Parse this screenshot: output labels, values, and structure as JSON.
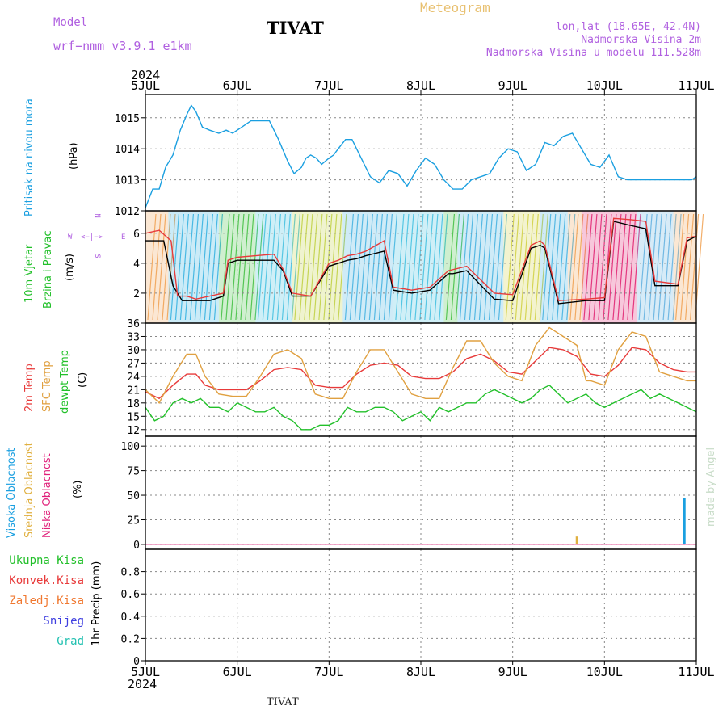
{
  "header": {
    "model_label": "Model",
    "model_name": "wrf−nmm_v3.9.1 e1km",
    "title": "TIVAT",
    "meteogram": "Meteogram",
    "lonlat": "lon,lat (18.65E, 42.4N)",
    "elev": "Nadmorska Visina 2m",
    "model_elev": "Nadmorska Visina u modelu 111.528m"
  },
  "footer": {
    "station": "TIVAT",
    "made_by": "made by Angel"
  },
  "colors": {
    "pressure": "#1a9fe0",
    "temp2m": "#e83a3a",
    "sfc": "#e0a040",
    "dew": "#22c02a",
    "high": "#1a9fe0",
    "mid": "#e0b040",
    "low": "#e0207a",
    "violet": "#b060e0"
  },
  "time_axis": {
    "year": "2024",
    "labels": [
      "5JUL",
      "6JUL",
      "7JUL",
      "8JUL",
      "9JUL",
      "10JUL",
      "11JUL"
    ]
  },
  "panels": {
    "pressure": {
      "label": "Pritisak na nivou mora",
      "unit": "(hPa)"
    },
    "wind": {
      "label1": "10m Vjetar",
      "label2": "Brzina i Pravac",
      "unit": "(m/s)",
      "compass_n": "N",
      "compass_e": "E",
      "compass_w": "W",
      "compass_s": "S"
    },
    "temp": {
      "label1": "2m Temp",
      "label2": "SFC Temp",
      "label3": "dewpt Temp",
      "unit": "(C)"
    },
    "cloud": {
      "label1": "Visoka Oblacnost",
      "label2": "Srednja Oblacnost",
      "label3": "Niska Oblacnost",
      "unit": "(%)"
    },
    "precip": {
      "unit": "1hr Precip (mm)",
      "legend": [
        "Ukupna Kisa",
        "Konvek.Kisa",
        "Zaledj.Kisa",
        "Snijeg",
        "Grad"
      ],
      "legend_colors": [
        "#22c02a",
        "#e83a3a",
        "#f07830",
        "#4040e0",
        "#20c0b0"
      ]
    }
  },
  "chart_data": [
    {
      "type": "line",
      "title": "",
      "ylabel": "Pritisak na nivou mora (hPa)",
      "xlim": [
        0,
        6
      ],
      "ylim": [
        1012,
        1015.75
      ],
      "yticks": [
        1012,
        1013,
        1014,
        1015
      ],
      "series": [
        {
          "name": "Pritisak na nivou mora",
          "color": "#1a9fe0",
          "x": [
            0,
            0.08,
            0.15,
            0.22,
            0.3,
            0.38,
            0.45,
            0.5,
            0.55,
            0.62,
            0.7,
            0.8,
            0.88,
            0.95,
            1.05,
            1.15,
            1.25,
            1.35,
            1.45,
            1.55,
            1.62,
            1.7,
            1.75,
            1.8,
            1.86,
            1.92,
            2,
            2.05,
            2.1,
            2.18,
            2.25,
            2.35,
            2.45,
            2.55,
            2.65,
            2.75,
            2.85,
            2.95,
            3.05,
            3.15,
            3.25,
            3.35,
            3.45,
            3.55,
            3.65,
            3.75,
            3.85,
            3.95,
            4.05,
            4.15,
            4.25,
            4.35,
            4.45,
            4.55,
            4.65,
            4.75,
            4.85,
            4.95,
            5.05,
            5.15,
            5.25,
            5.35,
            5.45,
            5.55,
            5.65,
            5.75,
            5.85,
            5.95,
            6
          ],
          "y": [
            1012.1,
            1012.7,
            1012.7,
            1013.4,
            1013.8,
            1014.6,
            1015.1,
            1015.4,
            1015.2,
            1014.7,
            1014.6,
            1014.5,
            1014.6,
            1014.5,
            1014.7,
            1014.9,
            1014.9,
            1014.9,
            1014.3,
            1013.6,
            1013.2,
            1013.4,
            1013.7,
            1013.8,
            1013.7,
            1013.5,
            1013.7,
            1013.8,
            1014.0,
            1014.3,
            1014.3,
            1013.7,
            1013.1,
            1012.9,
            1013.3,
            1013.2,
            1012.8,
            1013.3,
            1013.7,
            1013.5,
            1013.0,
            1012.7,
            1012.7,
            1013.0,
            1013.1,
            1013.2,
            1013.7,
            1014.0,
            1013.9,
            1013.3,
            1013.5,
            1014.2,
            1014.1,
            1014.4,
            1014.5,
            1014.0,
            1013.5,
            1013.4,
            1013.8,
            1013.1,
            1013.0,
            1013.0,
            1013.0,
            1013.0,
            1013.0,
            1013.0,
            1013.0,
            1013.0,
            1013.1
          ]
        }
      ]
    },
    {
      "type": "line",
      "title": "",
      "ylabel": "10m Vjetar Brzina i Pravac (m/s)",
      "xlim": [
        0,
        6
      ],
      "ylim": [
        0,
        7.5
      ],
      "yticks": [
        2,
        4,
        6
      ],
      "series": [
        {
          "name": "Brzina",
          "color": "#000000",
          "x": [
            0,
            0.1,
            0.2,
            0.3,
            0.4,
            0.5,
            0.7,
            0.85,
            0.9,
            1.0,
            1.2,
            1.4,
            1.5,
            1.6,
            1.8,
            2.0,
            2.1,
            2.2,
            2.3,
            2.4,
            2.6,
            2.7,
            2.9,
            3.1,
            3.3,
            3.35,
            3.5,
            3.8,
            4.0,
            4.2,
            4.3,
            4.35,
            4.5,
            4.8,
            5.0,
            5.1,
            5.3,
            5.45,
            5.55,
            5.8,
            5.9,
            6
          ],
          "y": [
            5.5,
            5.5,
            5.5,
            2.5,
            1.5,
            1.5,
            1.5,
            1.8,
            4.0,
            4.2,
            4.2,
            4.2,
            3.5,
            1.8,
            1.8,
            3.8,
            4.0,
            4.2,
            4.3,
            4.5,
            4.8,
            2.2,
            2.0,
            2.2,
            3.3,
            3.3,
            3.5,
            1.6,
            1.5,
            5.0,
            5.2,
            5.0,
            1.3,
            1.5,
            1.5,
            6.8,
            6.5,
            6.3,
            2.5,
            2.5,
            5.5,
            5.8
          ]
        },
        {
          "name": "Udari",
          "color": "#e83a3a",
          "x": [
            0,
            0.15,
            0.28,
            0.35,
            0.45,
            0.55,
            0.7,
            0.85,
            0.9,
            1.0,
            1.2,
            1.4,
            1.5,
            1.6,
            1.8,
            2.0,
            2.1,
            2.2,
            2.3,
            2.4,
            2.6,
            2.7,
            2.9,
            3.1,
            3.3,
            3.5,
            3.8,
            4.0,
            4.2,
            4.3,
            4.35,
            4.5,
            4.8,
            5.0,
            5.1,
            5.3,
            5.45,
            5.55,
            5.8,
            5.9,
            6
          ],
          "y": [
            6.0,
            6.2,
            5.5,
            1.8,
            1.8,
            1.6,
            1.8,
            2.0,
            4.2,
            4.4,
            4.5,
            4.6,
            3.6,
            2.0,
            1.8,
            4.0,
            4.2,
            4.5,
            4.6,
            4.8,
            5.5,
            2.4,
            2.2,
            2.4,
            3.5,
            3.8,
            2.0,
            1.9,
            5.2,
            5.5,
            5.2,
            1.5,
            1.6,
            1.7,
            7.0,
            6.9,
            6.8,
            2.8,
            2.6,
            5.7,
            5.8
          ]
        }
      ]
    },
    {
      "type": "line",
      "title": "",
      "ylabel": "Temp (C)",
      "xlim": [
        0,
        6
      ],
      "ylim": [
        10.5,
        36
      ],
      "yticks": [
        12,
        15,
        18,
        21,
        24,
        27,
        30,
        33,
        36
      ],
      "series": [
        {
          "name": "2m Temp",
          "color": "#e83a3a",
          "x": [
            0,
            0.15,
            0.3,
            0.45,
            0.55,
            0.65,
            0.8,
            0.95,
            1.1,
            1.25,
            1.4,
            1.55,
            1.7,
            1.85,
            2.0,
            2.15,
            2.3,
            2.45,
            2.6,
            2.75,
            2.9,
            3.05,
            3.2,
            3.35,
            3.5,
            3.65,
            3.8,
            3.95,
            4.1,
            4.25,
            4.4,
            4.55,
            4.7,
            4.85,
            5.0,
            5.15,
            5.3,
            5.45,
            5.6,
            5.75,
            5.9,
            6
          ],
          "y": [
            20.5,
            19,
            22,
            24.5,
            24.5,
            22,
            21,
            21,
            21,
            23,
            25.5,
            26,
            25.5,
            22,
            21.5,
            21.5,
            24.5,
            26.5,
            27,
            26.5,
            24,
            23.5,
            23.5,
            25,
            28,
            29,
            27.5,
            25,
            24.5,
            27.5,
            30.5,
            30,
            28.5,
            24.5,
            24,
            26.5,
            30.5,
            30,
            27,
            25.5,
            25,
            25
          ]
        },
        {
          "name": "SFC Temp",
          "color": "#e0a040",
          "x": [
            0,
            0.15,
            0.3,
            0.45,
            0.55,
            0.65,
            0.8,
            0.95,
            1.1,
            1.25,
            1.4,
            1.55,
            1.7,
            1.85,
            2.0,
            2.15,
            2.3,
            2.45,
            2.6,
            2.75,
            2.9,
            3.05,
            3.2,
            3.35,
            3.5,
            3.65,
            3.8,
            3.95,
            4.1,
            4.25,
            4.4,
            4.55,
            4.7,
            4.8,
            4.85,
            5.0,
            5.15,
            5.3,
            5.45,
            5.6,
            5.75,
            5.9,
            6
          ],
          "y": [
            21,
            18,
            24,
            29,
            29,
            24,
            20,
            19.5,
            19.5,
            24,
            29,
            30,
            28,
            20,
            19,
            19,
            25,
            30,
            30,
            25,
            20,
            19,
            19,
            26,
            32,
            32,
            27,
            24,
            23,
            31,
            35,
            33,
            31,
            23,
            23,
            22,
            30,
            34,
            33,
            25,
            24,
            23,
            23
          ]
        },
        {
          "name": "dewpt Temp",
          "color": "#22c02a",
          "x": [
            0,
            0.1,
            0.2,
            0.3,
            0.4,
            0.5,
            0.6,
            0.7,
            0.8,
            0.9,
            1.0,
            1.1,
            1.2,
            1.3,
            1.4,
            1.5,
            1.6,
            1.7,
            1.8,
            1.9,
            2.0,
            2.1,
            2.2,
            2.3,
            2.4,
            2.5,
            2.6,
            2.7,
            2.8,
            2.9,
            3.0,
            3.1,
            3.2,
            3.3,
            3.4,
            3.5,
            3.6,
            3.7,
            3.8,
            3.9,
            4.0,
            4.1,
            4.2,
            4.3,
            4.4,
            4.5,
            4.6,
            4.7,
            4.8,
            4.9,
            5.0,
            5.1,
            5.2,
            5.3,
            5.4,
            5.5,
            5.6,
            5.7,
            5.8,
            5.9,
            6
          ],
          "y": [
            17,
            14,
            15,
            18,
            19,
            18,
            19,
            17,
            17,
            16,
            18,
            17,
            16,
            16,
            17,
            15,
            14,
            12,
            12,
            13,
            13,
            14,
            17,
            16,
            16,
            17,
            17,
            16,
            14,
            15,
            16,
            14,
            17,
            16,
            17,
            18,
            18,
            20,
            21,
            20,
            19,
            18,
            19,
            21,
            22,
            20,
            18,
            19,
            20,
            18,
            17,
            18,
            19,
            20,
            21,
            19,
            20,
            19,
            18,
            17,
            16
          ]
        }
      ]
    },
    {
      "type": "bar",
      "title": "",
      "ylabel": "Oblacnost (%)",
      "xlim": [
        0,
        6
      ],
      "ylim": [
        -5,
        110
      ],
      "yticks": [
        0,
        25,
        50,
        75,
        100
      ],
      "series": [
        {
          "name": "Visoka Oblacnost",
          "color": "#1a9fe0",
          "x": [
            5.87
          ],
          "values": [
            47
          ]
        },
        {
          "name": "Srednja Oblacnost",
          "color": "#e0b040",
          "x": [
            4.7
          ],
          "values": [
            8
          ]
        },
        {
          "name": "Niska Oblacnost",
          "color": "#e0207a",
          "x": [],
          "values": []
        }
      ]
    },
    {
      "type": "bar",
      "title": "",
      "ylabel": "1hr Precip (mm)",
      "xlim": [
        0,
        6
      ],
      "ylim": [
        0,
        1.0
      ],
      "yticks": [
        0,
        0.2,
        0.4,
        0.6,
        0.8
      ],
      "series": [
        {
          "name": "Ukupna Kisa",
          "color": "#22c02a",
          "x": [],
          "values": []
        }
      ]
    }
  ]
}
